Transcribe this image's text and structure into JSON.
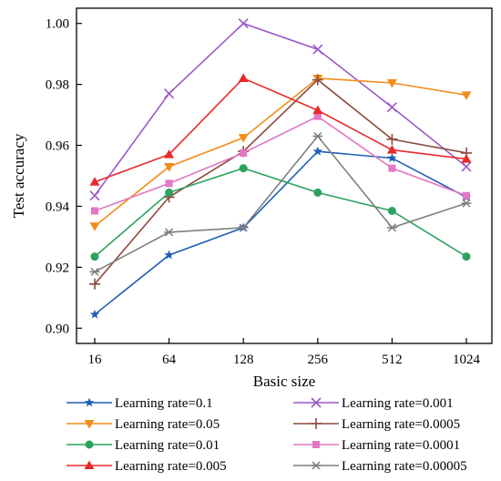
{
  "chart_data": {
    "type": "line",
    "categories": [
      "16",
      "64",
      "128",
      "256",
      "512",
      "1024"
    ],
    "xlabel": "Basic size",
    "ylabel": "Test accuracy",
    "ylim": [
      0.895,
      1.005
    ],
    "yticks": [
      0.9,
      0.92,
      0.94,
      0.96,
      0.98,
      1.0
    ],
    "ytick_labels": [
      "0.90",
      "0.92",
      "0.94",
      "0.96",
      "0.98",
      "1.00"
    ],
    "grid": false,
    "legend_placement": "bottom",
    "series": [
      {
        "name": "Learning rate=0.1",
        "marker": "star",
        "color": "#1f5fb4",
        "values": [
          0.9045,
          0.924,
          0.933,
          0.958,
          0.9558,
          0.943
        ]
      },
      {
        "name": "Learning rate=0.001",
        "marker": "x",
        "color": "#9b59c6",
        "values": [
          0.9435,
          0.977,
          1.0,
          0.9915,
          0.9725,
          0.953
        ]
      },
      {
        "name": "Learning rate=0.05",
        "marker": "triangle-down",
        "color": "#f28c1a",
        "values": [
          0.9335,
          0.953,
          0.9625,
          0.982,
          0.9805,
          0.9765
        ]
      },
      {
        "name": "Learning rate=0.0005",
        "marker": "plus",
        "color": "#8c4a3a",
        "values": [
          0.9145,
          0.943,
          0.958,
          0.9815,
          0.962,
          0.9575
        ]
      },
      {
        "name": "Learning rate=0.01",
        "marker": "circle",
        "color": "#2ca25f",
        "values": [
          0.9235,
          0.9445,
          0.9525,
          0.9445,
          0.9385,
          0.9235
        ]
      },
      {
        "name": "Learning rate=0.0001",
        "marker": "square",
        "color": "#e377c2",
        "values": [
          0.9385,
          0.9475,
          0.9575,
          0.9695,
          0.9525,
          0.9435
        ]
      },
      {
        "name": "Learning rate=0.005",
        "marker": "triangle-up",
        "color": "#e8292b",
        "values": [
          0.948,
          0.957,
          0.982,
          0.9715,
          0.9585,
          0.9555
        ]
      },
      {
        "name": "Learning rate=0.00005",
        "marker": "asterisk",
        "color": "#7f7f7f",
        "values": [
          0.9185,
          0.9315,
          0.933,
          0.963,
          0.933,
          0.941
        ]
      }
    ]
  }
}
